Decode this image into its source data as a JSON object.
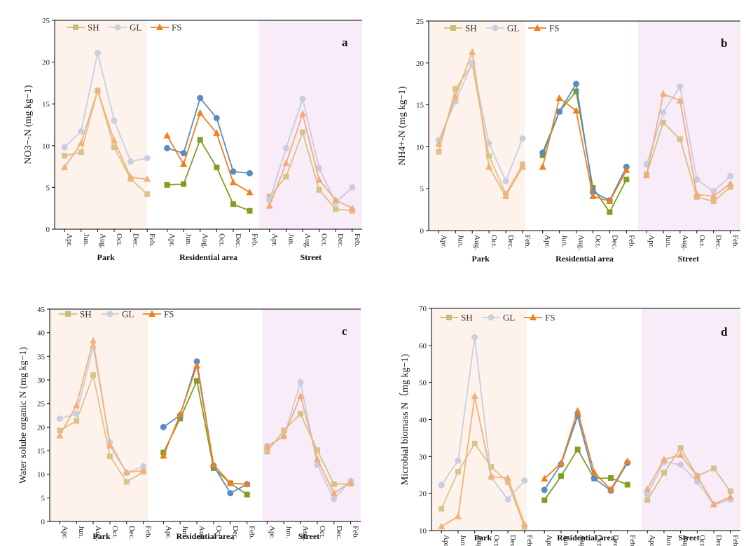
{
  "figure": {
    "legend_labels": [
      "SH",
      "GL",
      "FS"
    ]
  },
  "colors": {
    "SH_park": "#d9c58a",
    "GL_park": "#c7cfe0",
    "FS_park": "#f5b07a",
    "SH_res": "#7f9e22",
    "GL_res": "#5b8bc4",
    "FS_res": "#f07f1e",
    "SH_street": "#d6c283",
    "GL_street": "#c6cde2",
    "FS_street": "#f4ab7a",
    "legend_SH": "#c4c07a",
    "legend_GL": "#c7cfe0",
    "legend_FS": "#f07f1e",
    "band_park": "#fdf3ec",
    "band_street": "#f8ecf8"
  },
  "chart_data": [
    {
      "panel": "a",
      "type": "line",
      "ylabel": "NO3−-N (mg kg−1)",
      "ylim": [
        0,
        25
      ],
      "yticks": [
        0,
        5,
        10,
        15,
        20,
        25
      ],
      "groups": [
        "Park",
        "Residential area",
        "Street"
      ],
      "categories": [
        "Apr.",
        "Jun.",
        "Aug.",
        "Oct.",
        "Dec.",
        "Feb."
      ],
      "series": [
        {
          "name": "SH",
          "park": [
            8.8,
            9.2,
            16.6,
            9.8,
            6.0,
            4.2
          ],
          "residential": [
            5.3,
            5.4,
            10.7,
            7.4,
            3.0,
            2.2
          ],
          "street": [
            3.9,
            6.3,
            11.6,
            4.7,
            2.4,
            2.2
          ]
        },
        {
          "name": "GL",
          "park": [
            9.8,
            11.7,
            21.1,
            13.0,
            8.1,
            8.5
          ],
          "residential": [
            9.7,
            9.1,
            15.7,
            13.3,
            6.9,
            6.7
          ],
          "street": [
            3.5,
            9.7,
            15.6,
            7.3,
            3.2,
            5.0
          ]
        },
        {
          "name": "FS",
          "park": [
            7.4,
            10.3,
            16.6,
            10.6,
            6.2,
            6.0
          ],
          "residential": [
            11.2,
            7.8,
            13.9,
            11.5,
            5.6,
            4.4
          ],
          "street": [
            2.8,
            7.9,
            13.8,
            5.9,
            3.5,
            2.5
          ]
        }
      ]
    },
    {
      "panel": "b",
      "type": "line",
      "ylabel": "NH4+-N (mg kg−1)",
      "ylim": [
        0,
        25
      ],
      "yticks": [
        0,
        5,
        10,
        15,
        20,
        25
      ],
      "groups": [
        "Park",
        "Residential area",
        "Street"
      ],
      "categories": [
        "Apr.",
        "Jun.",
        "Aug.",
        "Oct.",
        "Dec.",
        "Feb."
      ],
      "series": [
        {
          "name": "SH",
          "park": [
            9.4,
            16.9,
            19.8,
            8.9,
            4.4,
            7.9
          ],
          "residential": [
            9.0,
            14.2,
            16.6,
            5.1,
            2.2,
            6.1
          ],
          "street": [
            6.7,
            12.9,
            10.9,
            4.0,
            3.5,
            5.2
          ]
        },
        {
          "name": "GL",
          "park": [
            10.8,
            15.4,
            20.0,
            10.4,
            5.9,
            11.0
          ],
          "residential": [
            9.3,
            14.2,
            17.5,
            4.6,
            3.6,
            7.6
          ],
          "street": [
            7.9,
            14.1,
            17.2,
            6.1,
            4.7,
            6.5
          ]
        },
        {
          "name": "FS",
          "park": [
            10.3,
            16.0,
            21.3,
            7.6,
            4.1,
            7.6
          ],
          "residential": [
            7.6,
            15.8,
            14.3,
            4.1,
            3.5,
            7.2
          ],
          "street": [
            6.6,
            16.3,
            15.5,
            4.3,
            4.1,
            5.6
          ]
        }
      ]
    },
    {
      "panel": "c",
      "type": "line",
      "ylabel": "Water solube organic N (mg kg−1)",
      "ylim": [
        0,
        45
      ],
      "yticks": [
        0,
        5,
        10,
        15,
        20,
        25,
        30,
        35,
        40,
        45
      ],
      "groups": [
        "Park",
        "Residential area",
        "Street"
      ],
      "categories": [
        "Apr.",
        "Jun.",
        "Aug.",
        "Oct.",
        "Dec.",
        "Feb."
      ],
      "series": [
        {
          "name": "SH",
          "park": [
            19.3,
            21.3,
            31.0,
            13.8,
            8.4,
            10.5
          ],
          "residential": [
            14.6,
            21.8,
            29.8,
            11.3,
            8.1,
            5.7
          ],
          "street": [
            14.8,
            19.3,
            22.8,
            15.1,
            7.9,
            8.0
          ]
        },
        {
          "name": "GL",
          "park": [
            21.8,
            22.8,
            36.9,
            16.8,
            10.3,
            11.7
          ],
          "residential": [
            20.0,
            22.5,
            33.9,
            11.8,
            6.0,
            7.9
          ],
          "street": [
            16.0,
            18.0,
            29.5,
            12.0,
            4.8,
            8.6
          ]
        },
        {
          "name": "FS",
          "park": [
            18.2,
            24.6,
            38.3,
            16.1,
            10.4,
            10.8
          ],
          "residential": [
            13.9,
            22.7,
            33.0,
            12.0,
            8.1,
            7.9
          ],
          "street": [
            15.8,
            18.1,
            26.6,
            13.2,
            6.0,
            8.3
          ]
        }
      ]
    },
    {
      "panel": "d",
      "type": "line",
      "ylabel": "Microbial biomass N（mg kg−1)",
      "ylim": [
        10,
        70
      ],
      "yticks": [
        10,
        20,
        30,
        40,
        50,
        60,
        70
      ],
      "groups": [
        "Park",
        "Residential area",
        "Street"
      ],
      "categories": [
        "Apr.",
        "Jun.",
        "Aug.",
        "Oct.",
        "Dec.",
        "Feb."
      ],
      "series": [
        {
          "name": "SH",
          "park": [
            15.9,
            25.9,
            33.5,
            27.2,
            23.1,
            11.0
          ],
          "residential": [
            18.2,
            24.7,
            31.9,
            24.1,
            24.2,
            22.4
          ],
          "street": [
            18.2,
            25.6,
            32.3,
            24.7,
            26.8,
            20.6
          ]
        },
        {
          "name": "GL",
          "park": [
            22.3,
            28.9,
            62.2,
            24.4,
            18.4,
            23.5
          ],
          "residential": [
            21.0,
            27.9,
            40.9,
            24.1,
            20.8,
            28.3
          ],
          "street": [
            19.8,
            28.5,
            27.8,
            23.2,
            17.0,
            18.4
          ]
        },
        {
          "name": "FS",
          "park": [
            11.1,
            13.8,
            46.3,
            24.6,
            24.2,
            11.7
          ],
          "residential": [
            24.0,
            28.2,
            42.3,
            25.7,
            21.1,
            28.7
          ],
          "street": [
            21.2,
            29.2,
            30.4,
            24.7,
            17.1,
            19.1
          ]
        }
      ]
    }
  ]
}
